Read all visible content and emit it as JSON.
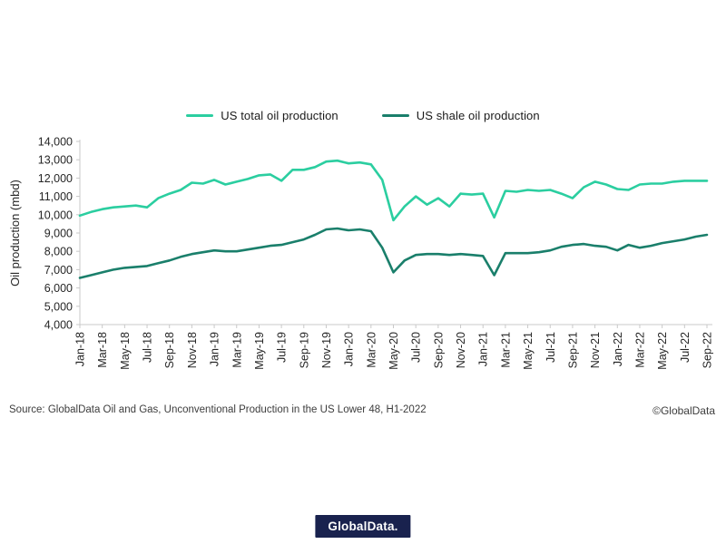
{
  "page": {
    "source_note": "Source: GlobalData Oil and Gas, Unconventional Production in the US Lower 48, H1-2022",
    "copyright": "©GlobalData",
    "logo_text": "GlobalData."
  },
  "colors": {
    "total_line": "#2BCEA0",
    "shale_line": "#1A7F6B",
    "axis": "#C9C9C9",
    "tick_label": "#262626",
    "logo_bg": "#19224E"
  },
  "chart_data": {
    "type": "line",
    "title": "",
    "xlabel": "",
    "ylabel": "Oil production (mbd)",
    "ylim": [
      4000,
      14000
    ],
    "ytick_step": 1000,
    "xtick_every": 2,
    "grid": false,
    "legend_position": "top",
    "categories": [
      "Jan-18",
      "Feb-18",
      "Mar-18",
      "Apr-18",
      "May-18",
      "Jun-18",
      "Jul-18",
      "Aug-18",
      "Sep-18",
      "Oct-18",
      "Nov-18",
      "Dec-18",
      "Jan-19",
      "Feb-19",
      "Mar-19",
      "Apr-19",
      "May-19",
      "Jun-19",
      "Jul-19",
      "Aug-19",
      "Sep-19",
      "Oct-19",
      "Nov-19",
      "Dec-19",
      "Jan-20",
      "Feb-20",
      "Mar-20",
      "Apr-20",
      "May-20",
      "Jun-20",
      "Jul-20",
      "Aug-20",
      "Sep-20",
      "Oct-20",
      "Nov-20",
      "Dec-20",
      "Jan-21",
      "Feb-21",
      "Mar-21",
      "Apr-21",
      "May-21",
      "Jun-21",
      "Jul-21",
      "Aug-21",
      "Sep-21",
      "Oct-21",
      "Nov-21",
      "Dec-21",
      "Jan-22",
      "Feb-22",
      "Mar-22",
      "Apr-22",
      "May-22",
      "Jun-22",
      "Jul-22",
      "Aug-22",
      "Sep-22"
    ],
    "series": [
      {
        "name": "US total oil production",
        "color": "#2BCEA0",
        "values": [
          9950,
          10150,
          10300,
          10400,
          10450,
          10500,
          10400,
          10900,
          11150,
          11350,
          11750,
          11700,
          11900,
          11650,
          11800,
          11950,
          12150,
          12200,
          11850,
          12450,
          12450,
          12600,
          12900,
          12950,
          12800,
          12850,
          12750,
          11900,
          9700,
          10450,
          11000,
          10550,
          10900,
          10450,
          11150,
          11100,
          11150,
          9850,
          11300,
          11250,
          11350,
          11300,
          11350,
          11150,
          10900,
          11500,
          11800,
          11650,
          11400,
          11350,
          11650,
          11700,
          11700,
          11800,
          11850,
          11850,
          11850
        ]
      },
      {
        "name": "US shale oil production",
        "color": "#1A7F6B",
        "values": [
          6550,
          6700,
          6850,
          7000,
          7100,
          7150,
          7200,
          7350,
          7500,
          7700,
          7850,
          7950,
          8050,
          8000,
          8000,
          8100,
          8200,
          8300,
          8350,
          8500,
          8650,
          8900,
          9200,
          9250,
          9150,
          9200,
          9100,
          8200,
          6850,
          7500,
          7800,
          7850,
          7850,
          7800,
          7850,
          7800,
          7750,
          6700,
          7900,
          7900,
          7900,
          7950,
          8050,
          8250,
          8350,
          8400,
          8300,
          8250,
          8050,
          8350,
          8200,
          8300,
          8450,
          8550,
          8650,
          8800,
          8900
        ]
      }
    ]
  }
}
